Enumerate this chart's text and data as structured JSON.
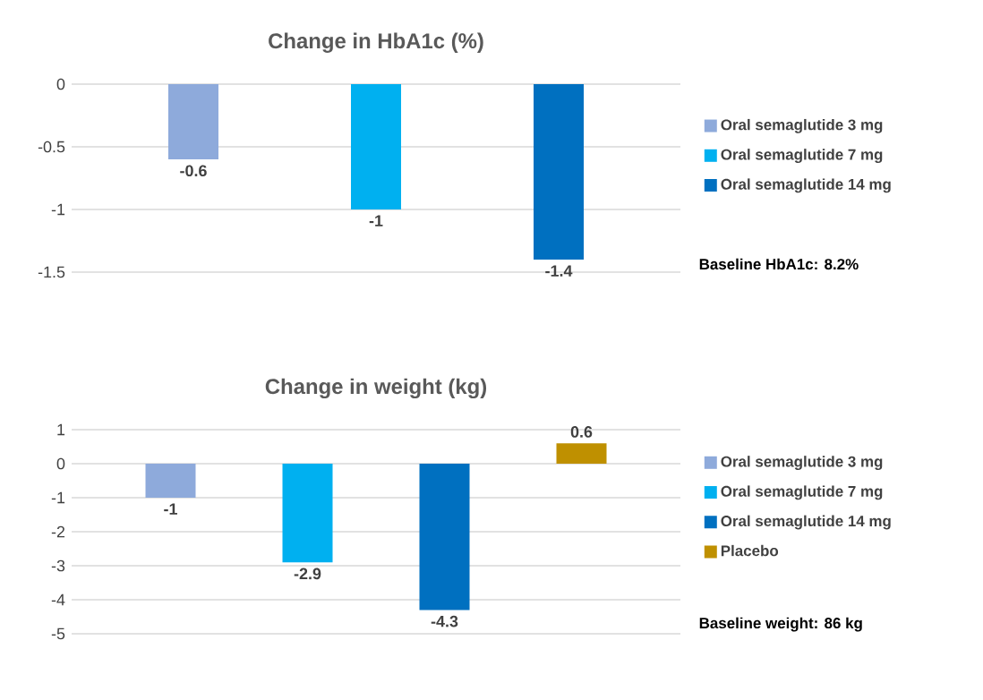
{
  "chart_data": [
    {
      "type": "bar",
      "title": "Change in HbA1c (%)",
      "categories": [
        null
      ],
      "series": [
        {
          "name": "Oral semaglutide 3 mg",
          "color": "#8eaadb",
          "values": [
            -0.6
          ]
        },
        {
          "name": "Oral semaglutide 7 mg",
          "color": "#00b0f0",
          "values": [
            -1
          ]
        },
        {
          "name": "Oral semaglutide 14 mg",
          "color": "#0070c0",
          "values": [
            -1.4
          ]
        }
      ],
      "ylim": [
        -1.5,
        0
      ],
      "yticks": [
        0,
        -0.5,
        -1,
        -1.5
      ],
      "grid": "y",
      "legend": "right",
      "data_labels": true,
      "annotations": [
        "Baseline HbA1c: 8.2%"
      ]
    },
    {
      "type": "bar",
      "title": "Change in weight (kg)",
      "categories": [
        null
      ],
      "series": [
        {
          "name": "Oral semaglutide 3 mg",
          "color": "#8eaadb",
          "values": [
            -1
          ]
        },
        {
          "name": "Oral semaglutide 7 mg",
          "color": "#00b0f0",
          "values": [
            -2.9
          ]
        },
        {
          "name": "Oral semaglutide 14 mg",
          "color": "#0070c0",
          "values": [
            -4.3
          ]
        },
        {
          "name": "Placebo",
          "color": "#bf9000",
          "values": [
            0.6
          ]
        }
      ],
      "ylim": [
        -5,
        1
      ],
      "yticks": [
        1,
        0,
        -1,
        -2,
        -3,
        -4,
        -5
      ],
      "grid": "y",
      "legend": "right",
      "data_labels": true,
      "annotations": [
        "Baseline weight: 86 kg"
      ]
    }
  ]
}
